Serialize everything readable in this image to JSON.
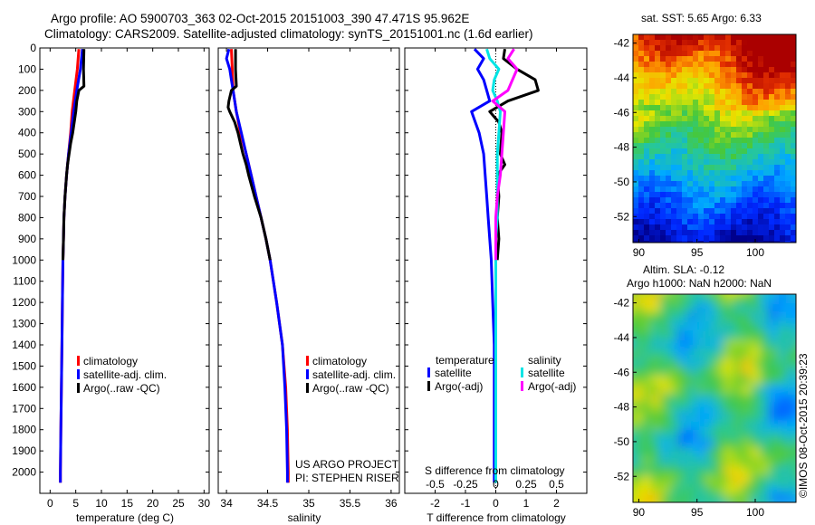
{
  "header": {
    "line1": "Argo profile: AO 5900703_363 02-Oct-2015 20151003_390 47.471S 95.962E",
    "line2": "Climatology: CARS2009. Satellite-adjusted climatology: synTS_20151001.nc (1.6d earlier)"
  },
  "chart_data": [
    {
      "type": "line",
      "id": "temperature",
      "xlabel": "temperature (deg C)",
      "ylabel": "",
      "xlim": [
        -2,
        31
      ],
      "ylim": [
        2100,
        0
      ],
      "xticks": [
        0,
        5,
        10,
        15,
        20,
        25,
        30
      ],
      "yticks": [
        0,
        100,
        200,
        300,
        400,
        500,
        600,
        700,
        800,
        900,
        1000,
        1100,
        1200,
        1300,
        1400,
        1500,
        1600,
        1700,
        1800,
        1900,
        2000
      ],
      "legend": {
        "placement": "middle",
        "entries": [
          "climatology",
          "satellite-adj. clim.",
          "Argo(..raw -QC)"
        ]
      },
      "series": [
        {
          "name": "climatology",
          "color": "#ff0000",
          "depth": [
            5,
            100,
            200,
            300,
            400,
            500,
            600,
            700,
            800,
            900,
            1000,
            1200,
            1400,
            1600,
            1800,
            2000,
            2050
          ],
          "values": [
            5.6,
            5.3,
            4.8,
            4.3,
            4.0,
            3.6,
            3.2,
            2.9,
            2.7,
            2.6,
            2.5,
            2.4,
            2.3,
            2.2,
            2.1,
            2.0,
            2.0
          ]
        },
        {
          "name": "satellite-adj. clim.",
          "color": "#0000ff",
          "depth": [
            5,
            100,
            200,
            300,
            400,
            500,
            600,
            700,
            800,
            900,
            1000,
            1200,
            1400,
            1600,
            1800,
            2000,
            2050
          ],
          "values": [
            6.3,
            5.9,
            5.2,
            4.6,
            4.1,
            3.6,
            3.2,
            2.9,
            2.7,
            2.6,
            2.5,
            2.4,
            2.3,
            2.2,
            2.1,
            2.0,
            2.0
          ]
        },
        {
          "name": "Argo(..raw -QC)",
          "color": "#000000",
          "depth": [
            5,
            100,
            180,
            200,
            250,
            300,
            350,
            400,
            450,
            500,
            550,
            600,
            700,
            800,
            900,
            1000
          ],
          "values": [
            6.6,
            6.5,
            6.6,
            5.6,
            5.2,
            5.0,
            4.7,
            4.4,
            4.0,
            3.7,
            3.4,
            3.2,
            2.9,
            2.7,
            2.6,
            2.5
          ]
        }
      ]
    },
    {
      "type": "line",
      "id": "salinity",
      "xlabel": "salinity",
      "ylabel": "",
      "xlim": [
        33.9,
        36.1
      ],
      "ylim": [
        2100,
        0
      ],
      "xticks": [
        34,
        34.5,
        35,
        35.5,
        36
      ],
      "legend": {
        "placement": "middle",
        "entries": [
          "climatology",
          "satellite-adj. clim.",
          "Argo(..raw -QC)"
        ]
      },
      "annotation": {
        "line1": "US ARGO PROJECT",
        "line2": "PI: STEPHEN RISER"
      },
      "series": [
        {
          "name": "climatology",
          "color": "#ff0000",
          "depth": [
            5,
            100,
            200,
            300,
            400,
            500,
            600,
            700,
            800,
            900,
            1000,
            1200,
            1400,
            1600,
            1800,
            2000,
            2050
          ],
          "values": [
            34.06,
            34.07,
            34.08,
            34.12,
            34.17,
            34.24,
            34.3,
            34.36,
            34.42,
            34.48,
            34.53,
            34.61,
            34.68,
            34.72,
            34.74,
            34.75,
            34.75
          ]
        },
        {
          "name": "satellite-adj. clim.",
          "color": "#0000ff",
          "depth": [
            5,
            50,
            100,
            150,
            200,
            300,
            400,
            500,
            600,
            700,
            800,
            900,
            1000,
            1200,
            1400,
            1600,
            1800,
            2000,
            2050
          ],
          "values": [
            34.03,
            34.0,
            34.04,
            34.06,
            34.08,
            34.12,
            34.18,
            34.24,
            34.3,
            34.36,
            34.42,
            34.48,
            34.53,
            34.61,
            34.68,
            34.71,
            34.73,
            34.74,
            34.74
          ]
        },
        {
          "name": "Argo(..raw -QC)",
          "color": "#000000",
          "depth": [
            5,
            100,
            180,
            200,
            250,
            280,
            300,
            350,
            400,
            450,
            500,
            550,
            600,
            700,
            800,
            900,
            1000
          ],
          "values": [
            34.11,
            34.11,
            34.12,
            34.06,
            34.03,
            34.02,
            34.04,
            34.1,
            34.14,
            34.17,
            34.2,
            34.24,
            34.27,
            34.34,
            34.42,
            34.48,
            34.53
          ]
        }
      ]
    },
    {
      "type": "line",
      "id": "differences",
      "xlabel": "T difference from climatology",
      "top_xlabel": "S difference from climatology",
      "xlim": [
        -3,
        3
      ],
      "ylim": [
        2100,
        0
      ],
      "xticks": [
        -2,
        -1,
        0,
        1,
        2
      ],
      "top_ticks": [
        -0.5,
        -0.25,
        0,
        0.25,
        0.5
      ],
      "top_tick_labels": [
        "-0.5",
        "-0.25",
        "0",
        "0.25",
        "0.5"
      ],
      "legend": {
        "placement": "middle",
        "temperature_title": "temperature",
        "salinity_title": "salinity",
        "entries": [
          "satellite",
          "Argo(-adj)",
          "satellite",
          "Argo(-adj)"
        ]
      },
      "series": [
        {
          "name": "satellite",
          "group": "temperature",
          "color": "#0000ff",
          "depth": [
            5,
            50,
            100,
            150,
            200,
            250,
            300,
            400,
            500,
            600,
            700,
            800,
            900,
            1000,
            1200,
            1400,
            1600,
            1800,
            2000,
            2050
          ],
          "values": [
            -0.7,
            -0.4,
            -0.6,
            -0.4,
            -0.3,
            -0.2,
            -0.8,
            -0.55,
            -0.4,
            -0.35,
            -0.3,
            -0.25,
            -0.2,
            -0.15,
            -0.1,
            -0.05,
            -0.05,
            -0.05,
            -0.05,
            -0.05
          ]
        },
        {
          "name": "Argo(-adj)",
          "group": "temperature",
          "color": "#000000",
          "depth": [
            5,
            50,
            100,
            150,
            200,
            250,
            300,
            350,
            400,
            500,
            550,
            600,
            700,
            800,
            900,
            1000
          ],
          "values": [
            0.3,
            0.25,
            0.7,
            1.3,
            1.4,
            0.4,
            -0.2,
            0.1,
            0.2,
            0.15,
            0.3,
            0.05,
            0.1,
            0.05,
            0.1,
            0.05
          ]
        },
        {
          "name": "satellite",
          "group": "salinity",
          "color": "#00e5e5",
          "depth": [
            5,
            50,
            100,
            150,
            200,
            250,
            300,
            400,
            500,
            600,
            700,
            800,
            900,
            1000,
            1200,
            1400,
            1600,
            1800,
            2000,
            2050
          ],
          "values": [
            -0.3,
            -0.2,
            0.1,
            -0.05,
            -0.1,
            0.05,
            0.15,
            0.1,
            0.05,
            0.05,
            0.05,
            0.05,
            0.0,
            0.0,
            0.0,
            0.0,
            0.0,
            0.0,
            0.0,
            0.0
          ]
        },
        {
          "name": "Argo(-adj)",
          "group": "salinity",
          "color": "#ff00ff",
          "depth": [
            5,
            50,
            100,
            200,
            250,
            300,
            400,
            500,
            600,
            700,
            800,
            900,
            1000
          ],
          "values": [
            0.6,
            0.4,
            0.7,
            0.4,
            -0.1,
            0.3,
            0.25,
            0.2,
            0.15,
            0.05,
            0.0,
            0.0,
            0.0
          ]
        }
      ]
    },
    {
      "type": "heatmap",
      "id": "sst-map",
      "title": "sat. SST: 5.65 Argo: 6.33",
      "xlim": [
        89.5,
        103.5
      ],
      "ylim": [
        -53.5,
        -41.5
      ],
      "xticks": [
        90,
        95,
        100
      ],
      "yticks": [
        -42,
        -44,
        -46,
        -48,
        -50,
        -52
      ]
    },
    {
      "type": "heatmap",
      "id": "sla-map",
      "title": "Altim. SLA: -0.12",
      "subtitle": "Argo h1000: NaN h2000: NaN",
      "xlim": [
        89.5,
        103.5
      ],
      "ylim": [
        -53.5,
        -41.5
      ],
      "xticks": [
        90,
        95,
        100
      ],
      "yticks": [
        -42,
        -44,
        -46,
        -48,
        -50,
        -52
      ]
    }
  ],
  "footer": {
    "imos_stamp": "©IMOS 08-Oct-2015 20:39:23"
  }
}
